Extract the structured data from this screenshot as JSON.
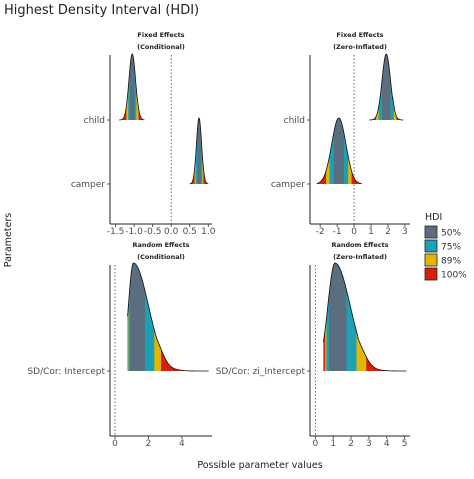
{
  "chart_data": {
    "type": "ridgeline",
    "title": "Highest Density Interval (HDI)",
    "xlabel": "Possible parameter values",
    "ylabel": "Parameters",
    "legend": {
      "title": "HDI",
      "placement": "right",
      "entries": [
        {
          "label": "50%",
          "color": "#5a6e80"
        },
        {
          "label": "75%",
          "color": "#1aa1b5"
        },
        {
          "label": "89%",
          "color": "#e3b505"
        },
        {
          "label": "100%",
          "color": "#d81f0a"
        }
      ]
    },
    "panels": [
      {
        "title_line1": "Fixed Effects",
        "title_line2": "(Conditional)",
        "xlim": [
          -1.65,
          1.1
        ],
        "ticks": [
          -1.5,
          -1.0,
          -0.5,
          0.0,
          0.5,
          1.0
        ],
        "tick_labels": [
          "-1.5",
          "-1.0",
          "-0.5",
          "0.0",
          "0.5",
          "1.0"
        ],
        "params": [
          "child",
          "camper"
        ],
        "densities": [
          {
            "param": "child",
            "mode": -1.05,
            "sd_left": 0.09,
            "sd_right": 0.09,
            "xmin": -1.4,
            "xmax": -0.72,
            "hdi50": [
              -1.11,
              -0.99
            ],
            "hdi75": [
              -1.16,
              -0.94
            ],
            "hdi89": [
              -1.21,
              -0.88
            ]
          },
          {
            "param": "camper",
            "mode": 0.75,
            "sd_left": 0.07,
            "sd_right": 0.07,
            "xmin": 0.5,
            "xmax": 1.0,
            "hdi50": [
              0.7,
              0.8
            ],
            "hdi75": [
              0.66,
              0.84
            ],
            "hdi89": [
              0.63,
              0.87
            ]
          }
        ]
      },
      {
        "title_line1": "Fixed Effects",
        "title_line2": "(Zero-Inflated)",
        "xlim": [
          -2.6,
          3.3
        ],
        "ticks": [
          -2,
          -1,
          0,
          1,
          2,
          3
        ],
        "tick_labels": [
          "-2",
          "-1",
          "0",
          "1",
          "2",
          "3"
        ],
        "params": [
          "child",
          "camper"
        ],
        "densities": [
          {
            "param": "child",
            "mode": 1.9,
            "sd_left": 0.25,
            "sd_right": 0.25,
            "xmin": 0.9,
            "xmax": 2.9,
            "hdi50": [
              1.65,
              2.15
            ],
            "hdi75": [
              1.45,
              2.35
            ],
            "hdi89": [
              1.3,
              2.5
            ]
          },
          {
            "param": "camper",
            "mode": -0.9,
            "sd_left": 0.42,
            "sd_right": 0.42,
            "xmin": -2.2,
            "xmax": 0.45,
            "hdi50": [
              -1.2,
              -0.6
            ],
            "hdi75": [
              -1.45,
              -0.35
            ],
            "hdi89": [
              -1.65,
              -0.15
            ]
          }
        ]
      },
      {
        "title_line1": "Random Effects",
        "title_line2": "(Conditional)",
        "xlim": [
          -0.3,
          5.8
        ],
        "ticks": [
          0,
          2,
          4
        ],
        "tick_labels": [
          "0",
          "2",
          "4"
        ],
        "params": [
          "SD/Cor:  Intercept"
        ],
        "densities": [
          {
            "param": "SD/Cor:  Intercept",
            "mode": 1.1,
            "sd_left": 0.3,
            "sd_right": 0.9,
            "xmin": 0.75,
            "xmax": 5.6,
            "hdi50": [
              0.9,
              1.8
            ],
            "hdi75": [
              0.8,
              2.35
            ],
            "hdi89": [
              0.77,
              2.75
            ]
          }
        ]
      },
      {
        "title_line1": "Random Effects",
        "title_line2": "(Zero-Inflated)",
        "xlim": [
          -0.3,
          5.3
        ],
        "ticks": [
          0,
          1,
          2,
          3,
          4,
          5
        ],
        "tick_labels": [
          "0",
          "1",
          "2",
          "3",
          "4",
          "5"
        ],
        "params": [
          "SD/Cor:  zi_Intercept"
        ],
        "densities": [
          {
            "param": "SD/Cor:  zi_Intercept",
            "mode": 1.1,
            "sd_left": 0.4,
            "sd_right": 0.85,
            "xmin": 0.45,
            "xmax": 5.1,
            "hdi50": [
              0.75,
              1.75
            ],
            "hdi75": [
              0.62,
              2.3
            ],
            "hdi89": [
              0.55,
              2.85
            ]
          }
        ]
      }
    ]
  }
}
